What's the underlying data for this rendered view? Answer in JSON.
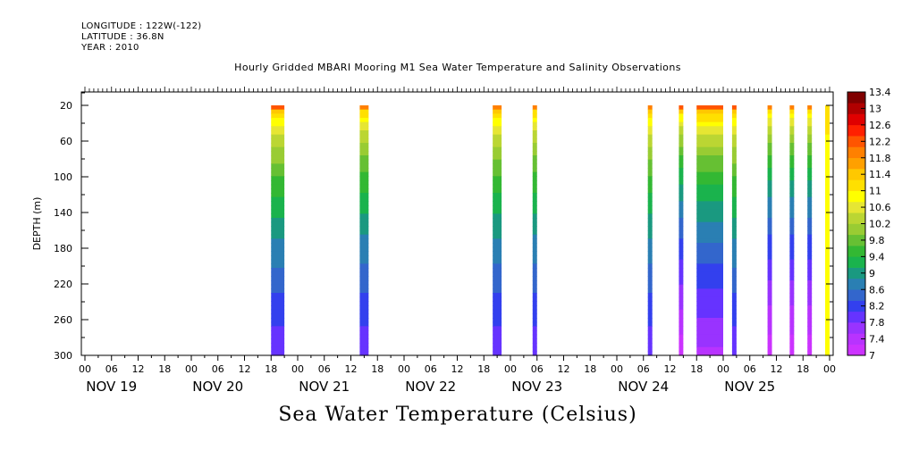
{
  "header": {
    "longitude": "LONGITUDE : 122W(-122)",
    "latitude": "LATITUDE : 36.8N",
    "year": "YEAR : 2010"
  },
  "chart_data": {
    "type": "heatmap",
    "title": "Hourly Gridded MBARI Mooring M1 Sea Water Temperature and Salinity Observations",
    "xlabel": "Sea Water Temperature (Celsius)",
    "ylabel": "DEPTH (m)",
    "ylim": [
      300,
      5
    ],
    "y_ticks": [
      20,
      60,
      100,
      140,
      180,
      220,
      260,
      300
    ],
    "x_hour_ticks": [
      "00",
      "06",
      "12",
      "18",
      "00",
      "06",
      "12",
      "18",
      "00",
      "06",
      "12",
      "18",
      "00",
      "06",
      "12",
      "18",
      "00",
      "06",
      "12",
      "18",
      "00",
      "06",
      "12",
      "18",
      "00",
      "06",
      "12",
      "18",
      "00"
    ],
    "day_labels": [
      "NOV 19",
      "NOV 20",
      "NOV 21",
      "NOV 22",
      "NOV 23",
      "NOV 24",
      "NOV 25"
    ],
    "colorbar": {
      "levels": [
        7,
        7.4,
        7.8,
        8.2,
        8.6,
        9,
        9.4,
        9.8,
        10.2,
        10.6,
        11,
        11.4,
        11.8,
        12.2,
        12.6,
        13,
        13.4
      ],
      "level_labels": [
        "7",
        "7.4",
        "7.8",
        "8.2",
        "8.6",
        "9",
        "9.4",
        "9.8",
        "10.2",
        "10.6",
        "11",
        "11.4",
        "11.8",
        "12.2",
        "12.6",
        "13",
        "13.4"
      ],
      "colors": [
        "#cc33ff",
        "#b833ff",
        "#9933ff",
        "#6633ff",
        "#3340ee",
        "#3366cc",
        "#2a7fb3",
        "#1a9980",
        "#1ab34d",
        "#33b833",
        "#66c033",
        "#99cc33",
        "#bbd633",
        "#e6e633",
        "#ffff00",
        "#ffe000",
        "#ffc800",
        "#ffa000",
        "#ff8000",
        "#ff5500",
        "#ff2000",
        "#e00000",
        "#b00000",
        "#800000"
      ]
    },
    "observation_blocks_hours": [
      {
        "start": 42,
        "end": 45,
        "surface_temp": 12.4,
        "bottom_temp": 7.9
      },
      {
        "start": 62,
        "end": 64,
        "surface_temp": 12.2,
        "bottom_temp": 7.9
      },
      {
        "start": 92,
        "end": 94,
        "surface_temp": 12.3,
        "bottom_temp": 7.9
      },
      {
        "start": 101,
        "end": 102,
        "surface_temp": 12.2,
        "bottom_temp": 7.9
      },
      {
        "start": 127,
        "end": 128,
        "surface_temp": 12.3,
        "bottom_temp": 7.9
      },
      {
        "start": 134,
        "end": 135,
        "surface_temp": 12.4,
        "bottom_temp": 7.1
      },
      {
        "start": 138,
        "end": 144,
        "surface_temp": 12.6,
        "bottom_temp": 7.5
      },
      {
        "start": 146,
        "end": 147,
        "surface_temp": 12.4,
        "bottom_temp": 7.9
      },
      {
        "start": 154,
        "end": 155,
        "surface_temp": 12.3,
        "bottom_temp": 7.1
      },
      {
        "start": 159,
        "end": 160,
        "surface_temp": 12.3,
        "bottom_temp": 7.1
      },
      {
        "start": 163,
        "end": 164,
        "surface_temp": 12.3,
        "bottom_temp": 7.1
      },
      {
        "start": 167,
        "end": 168,
        "surface_temp": 11.4,
        "bottom_temp": 11.0
      }
    ]
  }
}
